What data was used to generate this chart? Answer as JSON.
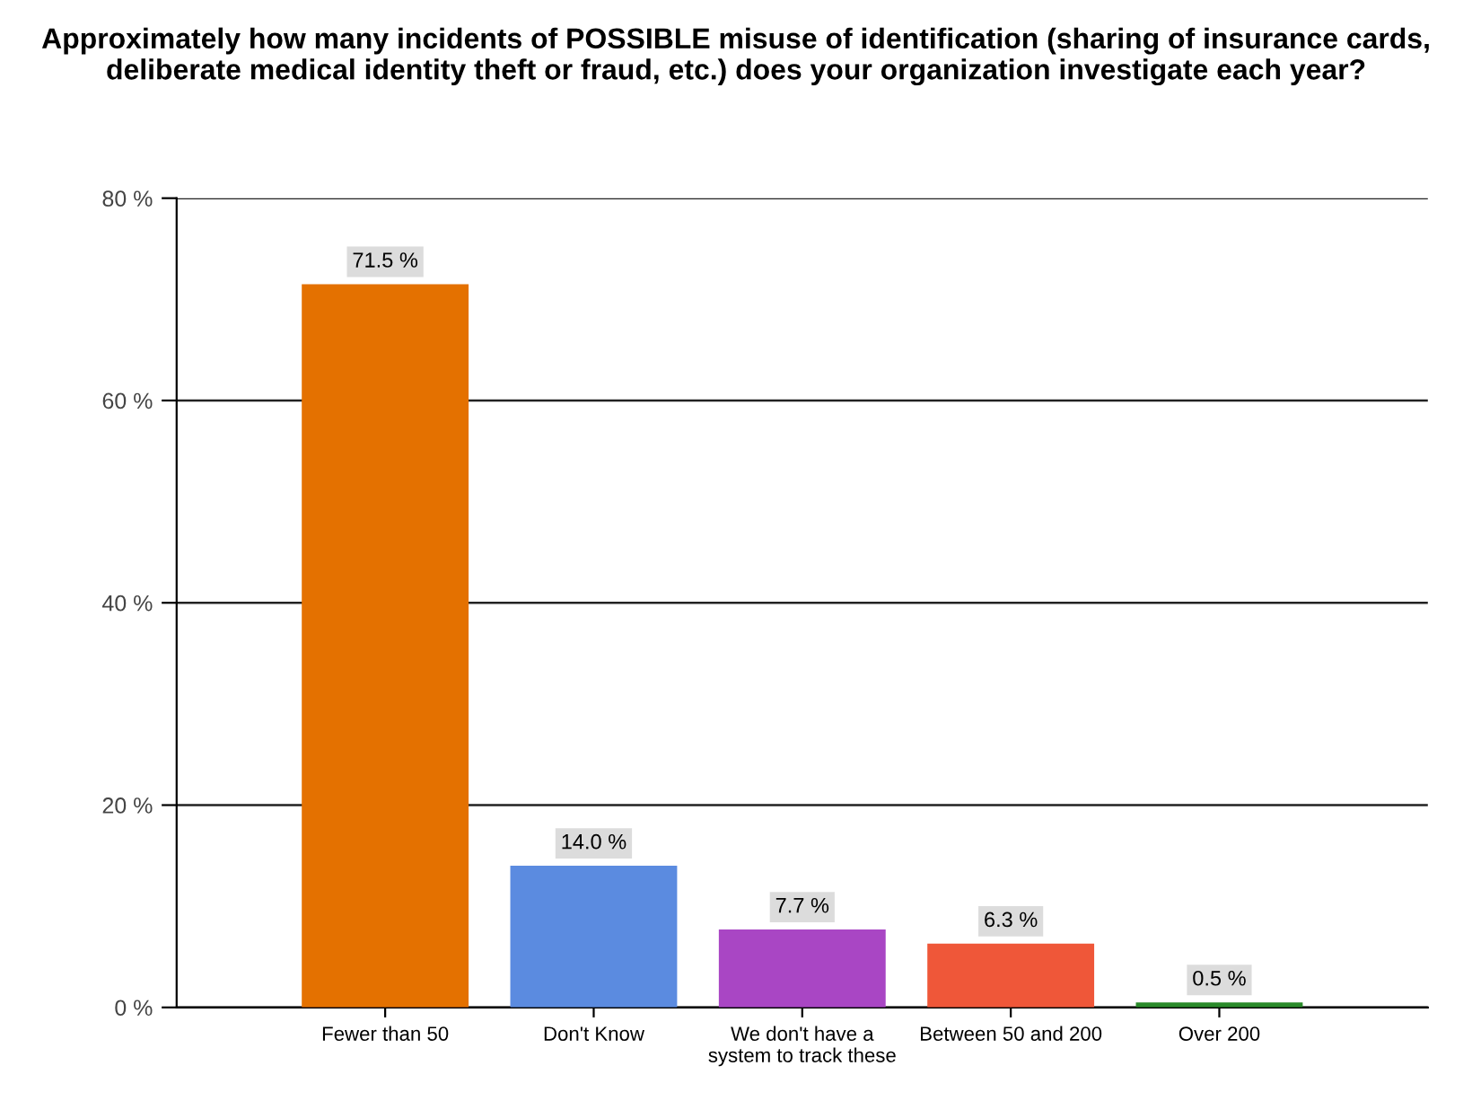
{
  "chart_data": {
    "type": "bar",
    "title": "Approximately how many incidents of POSSIBLE misuse of identification (sharing of insurance cards, deliberate medical identity theft or fraud, etc.) does your organization investigate each year?",
    "categories": [
      "Fewer than 50",
      "Don't Know",
      "We don't have a\nsystem to track these",
      "Between 50 and 200",
      "Over 200"
    ],
    "values": [
      71.5,
      14.0,
      7.7,
      6.3,
      0.5
    ],
    "colors": [
      "#e47100",
      "#5b8be0",
      "#a946c4",
      "#ef5739",
      "#2a8a2a"
    ],
    "value_labels": [
      "71.5 %",
      "14.0 %",
      "7.7 %",
      "6.3 %",
      "0.5 %"
    ],
    "ylim": [
      0,
      80
    ],
    "yticks": [
      {
        "value": 0,
        "label": "0 %"
      },
      {
        "value": 20,
        "label": "20 %"
      },
      {
        "value": 40,
        "label": "40 %"
      },
      {
        "value": 60,
        "label": "60 %"
      },
      {
        "value": 80,
        "label": "80 %"
      }
    ],
    "grid": "y",
    "legend": false
  }
}
